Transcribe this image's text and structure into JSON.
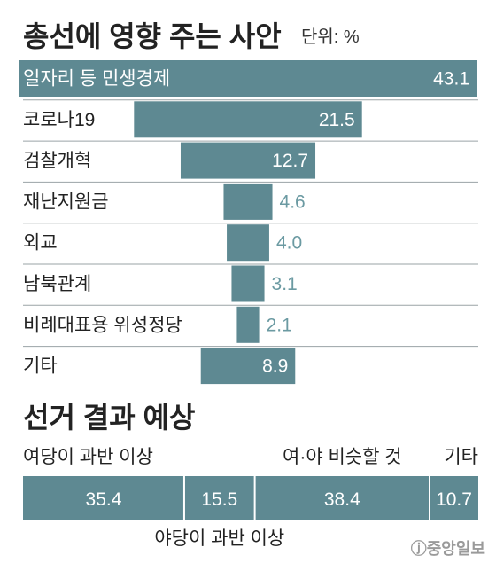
{
  "colors": {
    "bar": "#5e8992",
    "value_outside": "#6b9aa2",
    "separator": "#9aa3a6"
  },
  "chart_data": [
    {
      "type": "bar",
      "orientation": "horizontal",
      "title": "총선에 영향 주는 사안",
      "unit_label": "단위: %",
      "categories": [
        "일자리 등 민생경제",
        "코로나19",
        "검찰개혁",
        "재난지원금",
        "외교",
        "남북관계",
        "비례대표용 위성정당",
        "기타"
      ],
      "values": [
        43.1,
        21.5,
        12.7,
        4.6,
        4.0,
        3.1,
        2.1,
        8.9
      ]
    },
    {
      "type": "bar",
      "orientation": "stacked-horizontal",
      "title": "선거 결과 예상",
      "categories": [
        "여당이 과반 이상",
        "야당이 과반 이상",
        "여·야 비슷할 것",
        "기타"
      ],
      "values": [
        35.4,
        15.5,
        38.4,
        10.7
      ]
    }
  ],
  "credit": "ⓙ중앙일보"
}
